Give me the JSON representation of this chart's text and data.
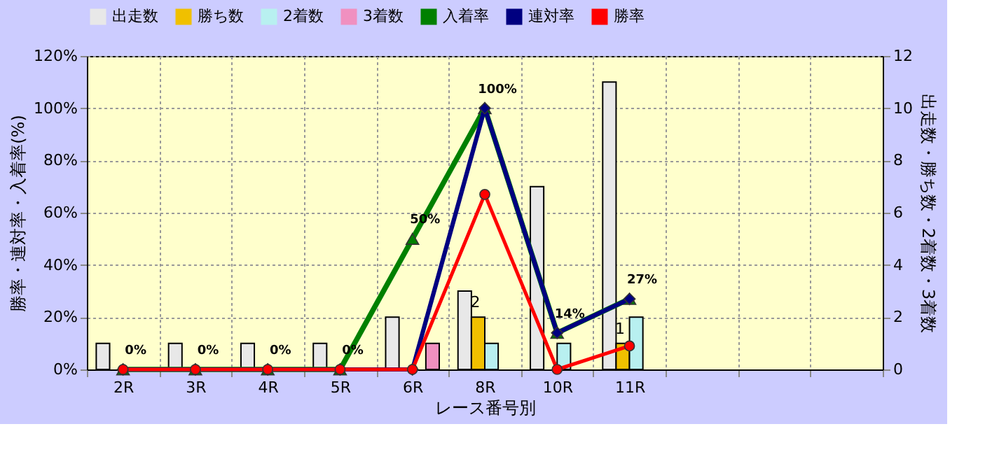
{
  "chart_data": {
    "type": "bar",
    "categories": [
      "2R",
      "3R",
      "4R",
      "5R",
      "6R",
      "8R",
      "10R",
      "11R",
      null,
      null,
      null
    ],
    "xlabel": "レース番号別",
    "ylabel": "勝率・連対率・入着率(%)",
    "y2label": "出走数・勝ち数・2着数・3着数",
    "series": [
      {
        "name": "出走数",
        "axis": "y2",
        "color": "#e8e8e8",
        "values": [
          1,
          1,
          1,
          1,
          2,
          3,
          7,
          11,
          null,
          null,
          null
        ]
      },
      {
        "name": "勝ち数",
        "axis": "y2",
        "color": "#f0c000",
        "values": [
          0,
          0,
          0,
          0,
          0,
          2,
          0,
          1,
          null,
          null,
          null
        ],
        "value_labels": [
          null,
          null,
          null,
          null,
          null,
          "2",
          null,
          "1",
          null,
          null,
          null
        ]
      },
      {
        "name": "2着数",
        "axis": "y2",
        "color": "#b8f0f0",
        "values": [
          0,
          0,
          0,
          0,
          0,
          1,
          1,
          2,
          null,
          null,
          null
        ]
      },
      {
        "name": "3着数",
        "axis": "y2",
        "color": "#f090c0",
        "values": [
          0,
          0,
          0,
          0,
          1,
          0,
          0,
          0,
          null,
          null,
          null
        ]
      },
      {
        "name": "入着率",
        "type": "line",
        "color": "#008000",
        "marker": "triangle",
        "values": [
          0,
          0,
          0,
          0,
          50,
          100,
          14,
          27,
          null,
          null,
          null
        ],
        "value_labels": [
          "0%",
          "0%",
          "0%",
          "0%",
          "50%",
          "100%",
          "14%",
          "27%",
          null,
          null,
          null
        ]
      },
      {
        "name": "連対率",
        "type": "line",
        "color": "#000080",
        "marker": "diamond",
        "values": [
          0,
          0,
          0,
          0,
          0,
          100,
          14,
          27,
          null,
          null,
          null
        ]
      },
      {
        "name": "勝率",
        "type": "line",
        "color": "#ff0000",
        "marker": "circle",
        "values": [
          0,
          0,
          0,
          0,
          0,
          67,
          0,
          9,
          null,
          null,
          null
        ]
      }
    ],
    "ylim": [
      0,
      120
    ],
    "yticks": [
      {
        "value": 0,
        "label": "0%"
      },
      {
        "value": 20,
        "label": "20%"
      },
      {
        "value": 40,
        "label": "40%"
      },
      {
        "value": 60,
        "label": "60%"
      },
      {
        "value": 80,
        "label": "80%"
      },
      {
        "value": 100,
        "label": "100%"
      },
      {
        "value": 120,
        "label": "120%"
      }
    ],
    "y2lim": [
      0,
      12
    ],
    "y2ticks": [
      0,
      2,
      4,
      6,
      8,
      10,
      12
    ],
    "grid": true,
    "legend": "top"
  }
}
